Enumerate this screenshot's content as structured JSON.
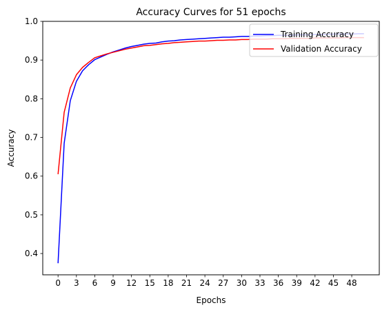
{
  "chart_data": {
    "type": "line",
    "title": "Accuracy Curves for 51 epochs",
    "xlabel": "Epochs",
    "ylabel": "Accuracy",
    "xlim": [
      -2.5,
      52.5
    ],
    "ylim": [
      0.345,
      1.0
    ],
    "xticks": [
      0,
      3,
      6,
      9,
      12,
      15,
      18,
      21,
      24,
      27,
      30,
      33,
      36,
      39,
      42,
      45,
      48
    ],
    "yticks": [
      0.4,
      0.5,
      0.6,
      0.7,
      0.8,
      0.9,
      1.0
    ],
    "ytick_labels": [
      "0.4",
      "0.5",
      "0.6",
      "0.7",
      "0.8",
      "0.9",
      "1.0"
    ],
    "grid": false,
    "legend_position": "top-right",
    "x": [
      0,
      1,
      2,
      3,
      4,
      5,
      6,
      7,
      8,
      9,
      10,
      11,
      12,
      13,
      14,
      15,
      16,
      17,
      18,
      19,
      20,
      21,
      22,
      23,
      24,
      25,
      26,
      27,
      28,
      29,
      30,
      31,
      32,
      33,
      34,
      35,
      36,
      37,
      38,
      39,
      40,
      41,
      42,
      43,
      44,
      45,
      46,
      47,
      48,
      49,
      50
    ],
    "series": [
      {
        "name": "Training Accuracy",
        "color": "#0000ff",
        "values": [
          0.375,
          0.685,
          0.795,
          0.845,
          0.872,
          0.888,
          0.901,
          0.908,
          0.915,
          0.921,
          0.926,
          0.931,
          0.935,
          0.938,
          0.941,
          0.943,
          0.944,
          0.947,
          0.949,
          0.95,
          0.952,
          0.953,
          0.954,
          0.955,
          0.956,
          0.957,
          0.958,
          0.959,
          0.959,
          0.96,
          0.961,
          0.961,
          0.962,
          0.962,
          0.963,
          0.963,
          0.964,
          0.964,
          0.964,
          0.965,
          0.965,
          0.965,
          0.966,
          0.966,
          0.966,
          0.967,
          0.967,
          0.967,
          0.967,
          0.968,
          0.968
        ]
      },
      {
        "name": "Validation Accuracy",
        "color": "#ff0000",
        "values": [
          0.605,
          0.765,
          0.828,
          0.862,
          0.881,
          0.894,
          0.906,
          0.911,
          0.916,
          0.92,
          0.924,
          0.928,
          0.931,
          0.934,
          0.937,
          0.938,
          0.94,
          0.942,
          0.943,
          0.945,
          0.946,
          0.947,
          0.948,
          0.949,
          0.949,
          0.95,
          0.951,
          0.951,
          0.952,
          0.952,
          0.953,
          0.953,
          0.954,
          0.954,
          0.954,
          0.955,
          0.955,
          0.955,
          0.956,
          0.956,
          0.956,
          0.956,
          0.957,
          0.957,
          0.957,
          0.957,
          0.957,
          0.958,
          0.958,
          0.958,
          0.958
        ]
      }
    ]
  }
}
